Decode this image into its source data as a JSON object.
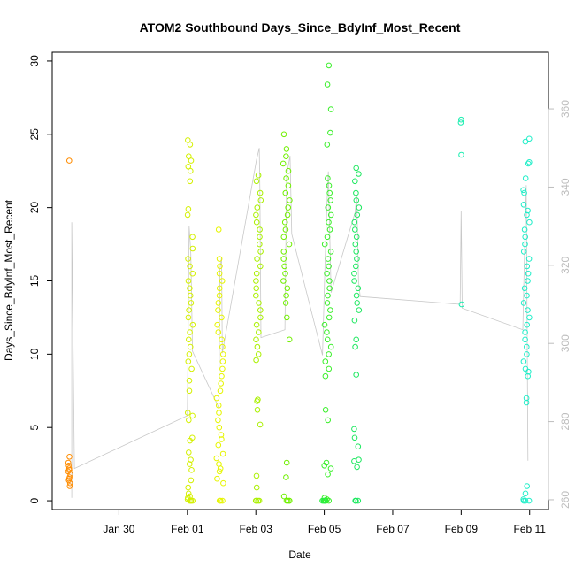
{
  "chart_data": {
    "type": "scatter",
    "title": "ATOM2 Southbound Days_Since_BdyInf_Most_Recent",
    "xlabel": "Date",
    "ylabel": "Days_Since_BdyInf_Most_Recent",
    "x_ticks": [
      "Jan 30",
      "Feb 01",
      "Feb 03",
      "Feb 05",
      "Feb 07",
      "Feb 09",
      "Feb 11"
    ],
    "x_tick_days": [
      30,
      32,
      34,
      36,
      38,
      40,
      42
    ],
    "xlim": [
      28.05,
      42.55
    ],
    "ylim": [
      -0.6,
      30.6
    ],
    "y_ticks": [
      0,
      5,
      10,
      15,
      20,
      25,
      30
    ],
    "y2_ticks": [
      260,
      280,
      300,
      320,
      340,
      360
    ],
    "y2lim": [
      257.5,
      374.5
    ],
    "grid": false,
    "color_scale": "hue increasing with date (orange to cyan)",
    "series": [
      {
        "role": "points",
        "clusters": [
          {
            "day": 28.55,
            "spread": 0.04,
            "values": [
              23.2,
              3.0,
              2.6,
              2.4,
              2.2,
              2.1,
              2.0,
              1.8,
              1.6,
              1.5,
              1.4,
              1.2,
              1.0
            ],
            "color": "#ff8c00"
          },
          {
            "day": 32.08,
            "spread": 0.08,
            "values": [
              24.6,
              24.3,
              23.5,
              23.2,
              22.8,
              22.5,
              21.8,
              19.9,
              19.5,
              18.0,
              17.2,
              16.5,
              16.0,
              15.5,
              15.0,
              14.5,
              14.0,
              13.5,
              13.0,
              12.5,
              12.0,
              11.5,
              11.0,
              10.5,
              10.0,
              9.5,
              9.0,
              8.2,
              7.5,
              6.0,
              5.8,
              5.5,
              4.3,
              4.1,
              3.3,
              2.8,
              2.5,
              2.1,
              1.4,
              0.9,
              0.5,
              0.3,
              0.2,
              0.1,
              0.0,
              0.0,
              0.0,
              0.0
            ],
            "color": "#d4f000"
          },
          {
            "day": 32.95,
            "spread": 0.1,
            "values": [
              18.5,
              16.5,
              16.0,
              15.5,
              15.0,
              14.5,
              14.0,
              13.5,
              13.0,
              12.5,
              12.0,
              11.5,
              11.0,
              10.5,
              10.0,
              9.5,
              9.0,
              8.5,
              8.0,
              7.5,
              7.0,
              6.5,
              6.0,
              5.5,
              5.0,
              4.5,
              4.2,
              3.8,
              3.2,
              2.9,
              2.5,
              2.2,
              2.0,
              1.5,
              1.2,
              0.0,
              0.0,
              0.0
            ],
            "color": "#e6f500"
          },
          {
            "day": 34.08,
            "spread": 0.08,
            "values": [
              22.2,
              21.8,
              21.0,
              20.5,
              20.0,
              19.5,
              19.0,
              18.5,
              18.0,
              17.5,
              17.0,
              16.5,
              16.0,
              15.5,
              15.0,
              14.5,
              14.0,
              13.5,
              13.0,
              12.5,
              12.0,
              11.5,
              11.0,
              10.5,
              10.0,
              9.6,
              6.9,
              6.8,
              6.2,
              5.2,
              1.7,
              0.9,
              0.0,
              0.0,
              0.0,
              0.0
            ],
            "color": "#aaf000"
          },
          {
            "day": 34.9,
            "spread": 0.1,
            "values": [
              25.0,
              24.0,
              23.5,
              23.0,
              22.5,
              22.0,
              21.5,
              21.0,
              20.5,
              20.0,
              19.5,
              19.0,
              18.5,
              18.0,
              17.5,
              17.0,
              16.5,
              16.0,
              15.5,
              15.0,
              14.5,
              14.0,
              13.5,
              12.5,
              11.0,
              2.6,
              1.6,
              0.3,
              0.0,
              0.0,
              0.0,
              0.0
            ],
            "color": "#70f000"
          },
          {
            "day": 36.1,
            "spread": 0.1,
            "values": [
              29.7,
              28.4,
              26.7,
              25.1,
              24.3,
              22.0,
              21.5,
              21.0,
              20.5,
              20.0,
              19.5,
              19.0,
              18.5,
              18.0,
              17.5,
              17.0,
              16.5,
              16.0,
              15.5,
              15.0,
              14.5,
              14.0,
              13.5,
              13.0,
              12.5,
              12.0,
              11.5,
              11.0,
              10.5,
              10.0,
              9.5,
              9.0,
              8.5,
              6.2,
              5.5,
              2.6,
              2.4,
              2.2,
              1.8,
              0.2,
              0.1,
              0.0,
              0.0,
              0.0
            ],
            "color": "#3aef2a"
          },
          {
            "day": 35.97,
            "spread": 0.06,
            "values": [
              0.0,
              0.0,
              0.0,
              0.0
            ],
            "color": "#2aee40"
          },
          {
            "day": 36.95,
            "spread": 0.08,
            "values": [
              22.7,
              22.3,
              21.8,
              21.0,
              20.5,
              20.0,
              19.5,
              19.0,
              18.5,
              18.0,
              17.5,
              17.0,
              16.5,
              16.0,
              15.5,
              15.0,
              14.5,
              14.0,
              13.5,
              13.0,
              12.3,
              11.0,
              10.5,
              8.6,
              4.9,
              4.3,
              3.7,
              2.8,
              2.7,
              2.3,
              0.0,
              0.0,
              0.0,
              0.0
            ],
            "color": "#1ee860"
          },
          {
            "day": 40.0,
            "spread": 0.02,
            "values": [
              26.0,
              25.8,
              23.6,
              13.4
            ],
            "color": "#1aeeb0"
          },
          {
            "day": 41.9,
            "spread": 0.1,
            "values": [
              24.7,
              24.5,
              23.1,
              23.0,
              22.0,
              21.2,
              21.0,
              20.2,
              19.8,
              19.5,
              19.0,
              18.5,
              18.0,
              17.5,
              17.0,
              16.5,
              16.0,
              15.5,
              15.0,
              14.5,
              14.0,
              13.5,
              13.0,
              12.5,
              12.0,
              11.5,
              11.0,
              10.5,
              10.0,
              9.5,
              9.0,
              8.8,
              8.5,
              7.0,
              6.7,
              1.0,
              0.5,
              0.1,
              0.0,
              0.0,
              0.0
            ],
            "color": "#20eec8"
          }
        ]
      },
      {
        "role": "line",
        "axis": "right",
        "color": "#c8c8c8",
        "path": [
          [
            28.62,
            260.5
          ],
          [
            28.62,
            331.0
          ],
          [
            28.7,
            268.0
          ],
          [
            32.0,
            281.5
          ],
          [
            32.05,
            330.0
          ],
          [
            32.1,
            323.0
          ],
          [
            32.15,
            298.0
          ],
          [
            32.92,
            283.5
          ],
          [
            32.95,
            319.0
          ],
          [
            33.0,
            322.0
          ],
          [
            33.02,
            297.5
          ],
          [
            34.02,
            347.0
          ],
          [
            34.1,
            350.0
          ],
          [
            34.12,
            339.5
          ],
          [
            34.15,
            301.5
          ],
          [
            34.85,
            303.5
          ],
          [
            34.9,
            343.0
          ],
          [
            35.0,
            348.0
          ],
          [
            35.05,
            328.0
          ],
          [
            35.95,
            297.0
          ],
          [
            36.02,
            320.0
          ],
          [
            36.08,
            336.0
          ],
          [
            36.12,
            344.0
          ],
          [
            36.2,
            313.0
          ],
          [
            36.9,
            333.5
          ],
          [
            36.95,
            338.0
          ],
          [
            37.0,
            316.0
          ],
          [
            37.05,
            312.0
          ],
          [
            39.97,
            310.0
          ],
          [
            40.0,
            334.0
          ],
          [
            40.03,
            309.0
          ],
          [
            41.8,
            303.5
          ],
          [
            41.85,
            323.0
          ],
          [
            41.9,
            340.5
          ],
          [
            41.95,
            270.0
          ]
        ]
      }
    ]
  }
}
